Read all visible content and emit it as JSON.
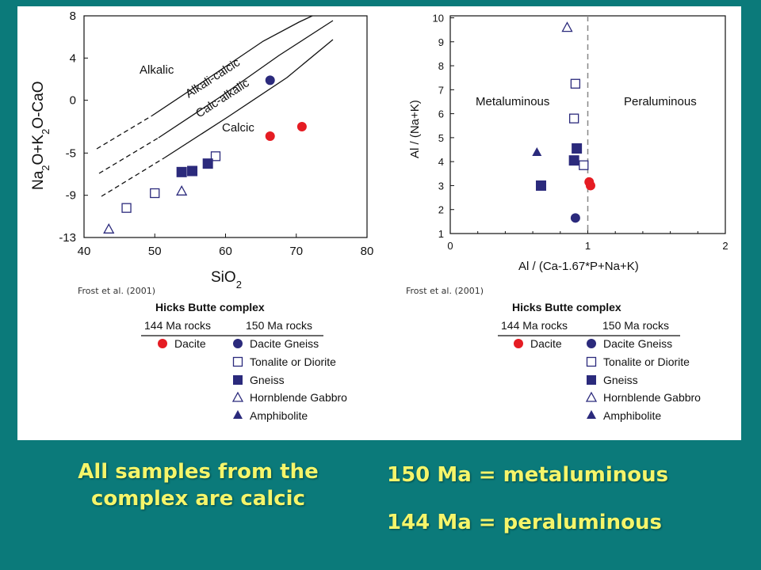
{
  "colors": {
    "background": "#0b7a7a",
    "caption": "#f5f56a",
    "red": "#e51c23",
    "navy": "#2b2a7c"
  },
  "chart_data": [
    {
      "type": "scatter",
      "ylabel": "Na2O+K2O-CaO",
      "xlabel": "SiO2",
      "xlim": [
        40,
        80
      ],
      "ylim": [
        -13,
        8
      ],
      "x_ticks": [
        "40",
        "50",
        "60",
        "70",
        "80"
      ],
      "y_ticks": [
        "8",
        "4",
        "0",
        "-5",
        "-9",
        "-13"
      ],
      "field_labels": [
        "Alkalic",
        "Alkali-calcic",
        "Calc-alkalic",
        "Calcic"
      ],
      "source": "Frost et al. (2001)",
      "series": [
        {
          "name": "Dacite",
          "marker": "red-circle",
          "points": [
            [
              66.3,
              -3.4
            ],
            [
              70.8,
              -2.5
            ]
          ]
        },
        {
          "name": "Dacite Gneiss",
          "marker": "navy-circle",
          "points": [
            [
              66.3,
              1.9
            ]
          ]
        },
        {
          "name": "Tonalite or Diorite",
          "marker": "open-square",
          "points": [
            [
              46.0,
              -10.2
            ],
            [
              50.0,
              -8.8
            ],
            [
              58.6,
              -5.3
            ]
          ]
        },
        {
          "name": "Gneiss",
          "marker": "filled-square",
          "points": [
            [
              53.8,
              -6.8
            ],
            [
              55.3,
              -6.7
            ],
            [
              57.5,
              -6.0
            ]
          ]
        },
        {
          "name": "Hornblende Gabbro",
          "marker": "open-triangle",
          "points": [
            [
              43.5,
              -12.2
            ],
            [
              53.8,
              -8.6
            ]
          ]
        }
      ]
    },
    {
      "type": "scatter",
      "ylabel": "Al / (Na+K)",
      "xlabel": "Al / (Ca-1.67*P+Na+K)",
      "xlim": [
        0,
        2
      ],
      "ylim": [
        1,
        10
      ],
      "x_ticks": [
        "0",
        "1",
        "2"
      ],
      "y_ticks": [
        "1",
        "2",
        "3",
        "4",
        "5",
        "6",
        "7",
        "8",
        "9",
        "10"
      ],
      "field_labels": [
        "Metaluminous",
        "Peraluminous"
      ],
      "source": "Frost et al. (2001)",
      "series": [
        {
          "name": "Dacite",
          "marker": "red-circle",
          "points": [
            [
              1.01,
              3.15
            ],
            [
              1.02,
              3.0
            ]
          ]
        },
        {
          "name": "Dacite Gneiss",
          "marker": "navy-circle",
          "points": [
            [
              0.91,
              1.65
            ]
          ]
        },
        {
          "name": "Tonalite or Diorite",
          "marker": "open-square",
          "points": [
            [
              0.91,
              7.25
            ],
            [
              0.9,
              5.8
            ],
            [
              0.97,
              3.85
            ]
          ]
        },
        {
          "name": "Gneiss",
          "marker": "filled-square",
          "points": [
            [
              0.92,
              4.55
            ],
            [
              0.9,
              4.05
            ],
            [
              0.66,
              3.0
            ]
          ]
        },
        {
          "name": "Hornblende Gabbro",
          "marker": "open-triangle",
          "points": [
            [
              0.85,
              9.6
            ]
          ]
        },
        {
          "name": "Amphibolite",
          "marker": "filled-triangle",
          "points": [
            [
              0.63,
              4.4
            ]
          ]
        }
      ]
    }
  ],
  "legend": {
    "title": "Hicks Butte complex",
    "col1_header": "144 Ma rocks",
    "col2_header": "150 Ma rocks",
    "entries": {
      "dacite": "Dacite",
      "dacite_gneiss": "Dacite Gneiss",
      "tonalite": "Tonalite or Diorite",
      "gneiss": "Gneiss",
      "hornblende_gabbro": "Hornblende Gabbro",
      "amphibolite": "Amphibolite"
    }
  },
  "captions": {
    "left": "All samples from the complex are calcic",
    "right_line1": "150 Ma = metaluminous",
    "right_line2": "144 Ma = peraluminous"
  }
}
